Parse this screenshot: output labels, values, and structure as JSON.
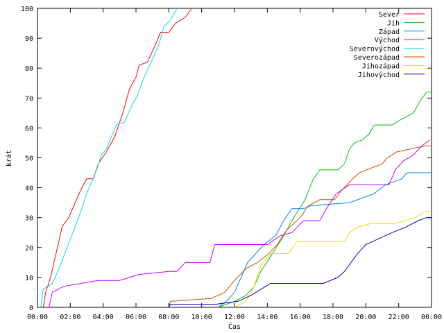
{
  "chart_data": {
    "type": "line",
    "title": "",
    "xlabel": "Čas",
    "ylabel": "krát",
    "xlim": [
      0,
      24
    ],
    "ylim": [
      0,
      100
    ],
    "grid": false,
    "legend_position": "top-right",
    "x_ticks": [
      {
        "value": 0,
        "label": "00:00"
      },
      {
        "value": 2,
        "label": "02:00"
      },
      {
        "value": 4,
        "label": "04:00"
      },
      {
        "value": 6,
        "label": "06:00"
      },
      {
        "value": 8,
        "label": "08:00"
      },
      {
        "value": 10,
        "label": "10:00"
      },
      {
        "value": 12,
        "label": "12:00"
      },
      {
        "value": 14,
        "label": "14:00"
      },
      {
        "value": 16,
        "label": "16:00"
      },
      {
        "value": 18,
        "label": "18:00"
      },
      {
        "value": 20,
        "label": "20:00"
      },
      {
        "value": 22,
        "label": "22:00"
      },
      {
        "value": 24,
        "label": "00:00"
      }
    ],
    "y_ticks": [
      0,
      10,
      20,
      30,
      40,
      50,
      60,
      70,
      80,
      90,
      100
    ],
    "series": [
      {
        "name": "Sever",
        "color": "#ff0000",
        "points": [
          [
            0.35,
            0
          ],
          [
            0.5,
            5
          ],
          [
            0.8,
            10
          ],
          [
            1.0,
            15
          ],
          [
            1.3,
            22
          ],
          [
            1.5,
            27
          ],
          [
            1.9,
            30
          ],
          [
            2.3,
            35
          ],
          [
            2.7,
            40
          ],
          [
            3.0,
            43
          ],
          [
            3.4,
            43
          ],
          [
            3.7,
            48
          ],
          [
            4.2,
            52
          ],
          [
            4.7,
            57
          ],
          [
            5.2,
            65
          ],
          [
            5.6,
            73
          ],
          [
            6.0,
            77
          ],
          [
            6.2,
            81
          ],
          [
            6.7,
            82
          ],
          [
            7.2,
            88
          ],
          [
            7.5,
            92
          ],
          [
            8.0,
            92
          ],
          [
            8.4,
            95
          ],
          [
            9.0,
            97
          ],
          [
            9.4,
            100
          ]
        ]
      },
      {
        "name": "Jih",
        "color": "#00c000",
        "points": [
          [
            11.0,
            0
          ],
          [
            12.0,
            2
          ],
          [
            12.7,
            4
          ],
          [
            13.2,
            7
          ],
          [
            13.6,
            12
          ],
          [
            14.2,
            17
          ],
          [
            15.0,
            24
          ],
          [
            15.6,
            30
          ],
          [
            16.3,
            36
          ],
          [
            16.8,
            43
          ],
          [
            17.2,
            46
          ],
          [
            18.3,
            46
          ],
          [
            18.7,
            48
          ],
          [
            19.0,
            53
          ],
          [
            19.3,
            55
          ],
          [
            19.8,
            56
          ],
          [
            20.2,
            58
          ],
          [
            20.5,
            61
          ],
          [
            21.6,
            61
          ],
          [
            22.2,
            63
          ],
          [
            22.9,
            65
          ],
          [
            23.3,
            69
          ],
          [
            23.7,
            72
          ],
          [
            24.0,
            72
          ]
        ]
      },
      {
        "name": "Západ",
        "color": "#0080ff",
        "points": [
          [
            11.0,
            0
          ],
          [
            11.5,
            2
          ],
          [
            12.0,
            5
          ],
          [
            12.4,
            10
          ],
          [
            12.8,
            15
          ],
          [
            13.3,
            18
          ],
          [
            13.8,
            21
          ],
          [
            14.5,
            24
          ],
          [
            15.0,
            29
          ],
          [
            15.5,
            33
          ],
          [
            16.2,
            33
          ],
          [
            16.7,
            34
          ],
          [
            19.0,
            35
          ],
          [
            20.5,
            38
          ],
          [
            21.2,
            41
          ],
          [
            22.2,
            43
          ],
          [
            22.5,
            45
          ],
          [
            24.0,
            45
          ]
        ]
      },
      {
        "name": "Východ",
        "color": "#c000ff",
        "points": [
          [
            0.7,
            0
          ],
          [
            0.9,
            5
          ],
          [
            1.6,
            7
          ],
          [
            3.7,
            9
          ],
          [
            5.0,
            9
          ],
          [
            6.2,
            11
          ],
          [
            8.0,
            12
          ],
          [
            8.5,
            12
          ],
          [
            9.0,
            15
          ],
          [
            10.5,
            15
          ],
          [
            10.8,
            21
          ],
          [
            14.0,
            21
          ],
          [
            14.8,
            24
          ],
          [
            15.5,
            25
          ],
          [
            16.2,
            29
          ],
          [
            17.2,
            29
          ],
          [
            17.6,
            33
          ],
          [
            18.2,
            38
          ],
          [
            19.0,
            41
          ],
          [
            21.4,
            41
          ],
          [
            21.8,
            46
          ],
          [
            22.3,
            49
          ],
          [
            22.9,
            51
          ],
          [
            23.4,
            54
          ],
          [
            23.9,
            56
          ]
        ]
      },
      {
        "name": "Severovýchod",
        "color": "#00e0e0",
        "points": [
          [
            0.2,
            0
          ],
          [
            0.35,
            6
          ],
          [
            0.9,
            8
          ],
          [
            1.4,
            14
          ],
          [
            1.8,
            20
          ],
          [
            2.3,
            27
          ],
          [
            2.7,
            33
          ],
          [
            3.0,
            38
          ],
          [
            3.3,
            42
          ],
          [
            3.6,
            46
          ],
          [
            3.9,
            51
          ],
          [
            4.2,
            53
          ],
          [
            4.5,
            57
          ],
          [
            4.8,
            61
          ],
          [
            5.3,
            62
          ],
          [
            5.7,
            67
          ],
          [
            6.1,
            71
          ],
          [
            6.5,
            77
          ],
          [
            7.0,
            83
          ],
          [
            7.4,
            88
          ],
          [
            7.7,
            94
          ],
          [
            8.1,
            96
          ],
          [
            8.5,
            100
          ]
        ]
      },
      {
        "name": "Severozápad",
        "color": "#c05000",
        "points": [
          [
            8.0,
            0
          ],
          [
            8.1,
            2
          ],
          [
            10.6,
            3
          ],
          [
            11.4,
            5
          ],
          [
            12.0,
            9
          ],
          [
            12.7,
            13
          ],
          [
            13.4,
            15
          ],
          [
            14.1,
            18
          ],
          [
            14.6,
            21
          ],
          [
            15.2,
            26
          ],
          [
            16.0,
            30
          ],
          [
            16.5,
            34
          ],
          [
            17.2,
            36
          ],
          [
            18.1,
            36
          ],
          [
            18.5,
            39
          ],
          [
            19.2,
            43
          ],
          [
            19.6,
            45
          ],
          [
            21.0,
            48
          ],
          [
            21.3,
            50
          ],
          [
            21.9,
            52
          ],
          [
            23.6,
            54
          ],
          [
            24.0,
            54
          ]
        ]
      },
      {
        "name": "Jihozápad",
        "color": "#e0e000",
        "points": [
          [
            12.0,
            0
          ],
          [
            12.7,
            2
          ],
          [
            13.2,
            7
          ],
          [
            13.6,
            14
          ],
          [
            14.2,
            18
          ],
          [
            15.3,
            18
          ],
          [
            15.8,
            22
          ],
          [
            18.7,
            22
          ],
          [
            19.0,
            25
          ],
          [
            19.6,
            27
          ],
          [
            20.3,
            28
          ],
          [
            21.8,
            28
          ],
          [
            23.0,
            30
          ],
          [
            23.6,
            32
          ],
          [
            24.0,
            32
          ]
        ]
      },
      {
        "name": "Jihovýchod",
        "color": "#0000c0",
        "points": [
          [
            8.0,
            0
          ],
          [
            8.1,
            1
          ],
          [
            10.8,
            1
          ],
          [
            12.2,
            2
          ],
          [
            13.0,
            4
          ],
          [
            13.6,
            6
          ],
          [
            14.2,
            8
          ],
          [
            17.4,
            8
          ],
          [
            18.3,
            10
          ],
          [
            18.7,
            12
          ],
          [
            19.1,
            15
          ],
          [
            19.5,
            18
          ],
          [
            20.0,
            21
          ],
          [
            20.8,
            23
          ],
          [
            21.6,
            25
          ],
          [
            22.5,
            27
          ],
          [
            23.2,
            29
          ],
          [
            23.7,
            30
          ],
          [
            24.0,
            30
          ]
        ]
      }
    ]
  }
}
